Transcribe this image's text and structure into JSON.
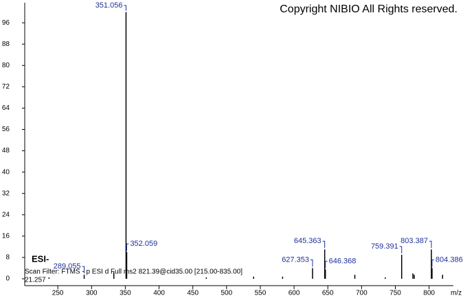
{
  "chart_data": {
    "type": "spectrum",
    "title": "Copyright NIBIO All Rights reserved.",
    "ion_mode": "ESI-",
    "scan_filter": "Scan Filter: FTMS - p ESI d Full ms2 821.39@cid35.00 [215.00-835.00]",
    "retention_time": "21.257",
    "x_label": "m/z",
    "xlim": [
      201,
      836
    ],
    "ylim": [
      0,
      103
    ],
    "xticks": [
      250,
      300,
      350,
      400,
      450,
      500,
      550,
      600,
      650,
      700,
      750,
      800
    ],
    "yticks": [
      0,
      8,
      16,
      24,
      32,
      40,
      48,
      56,
      64,
      72,
      80,
      88,
      96
    ],
    "peaks": {
      "x": [
        289.055,
        351.056,
        352.059,
        627.353,
        645.363,
        646.368,
        759.391,
        803.387,
        804.386
      ],
      "values": [
        1.5,
        100,
        10,
        4,
        11,
        3.5,
        9,
        11,
        4
      ]
    },
    "minor_peaks": {
      "x": [
        237,
        333,
        470,
        540,
        583,
        690,
        735,
        776,
        778,
        820
      ],
      "values": [
        0.5,
        2.5,
        0.5,
        0.8,
        0.8,
        1.5,
        0.5,
        2,
        1.5,
        1.5
      ]
    },
    "color": "#000000",
    "label_color": "#1f2f9a"
  }
}
